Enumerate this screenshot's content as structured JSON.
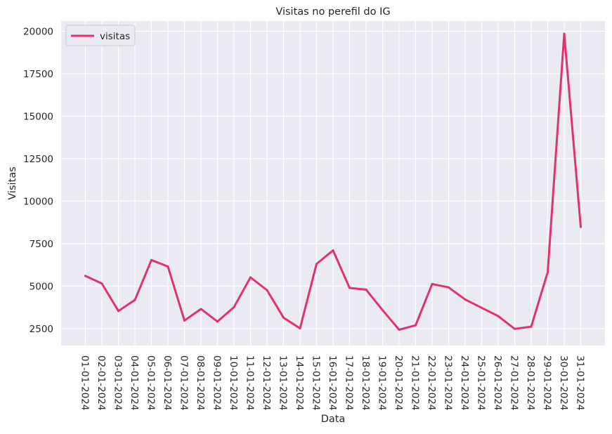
{
  "chart_data": {
    "type": "line",
    "title": "Visitas no perefil do IG",
    "xlabel": "Data",
    "ylabel": "Visitas",
    "ylim": [
      1500,
      20600
    ],
    "yticks": [
      2500,
      5000,
      7500,
      10000,
      12500,
      15000,
      17500,
      20000
    ],
    "grid": true,
    "legend_position": "top-left",
    "series": [
      {
        "name": "visitas",
        "color": "#e0336e",
        "x": [
          "01-01-2024",
          "02-01-2024",
          "03-01-2024",
          "04-01-2024",
          "05-01-2024",
          "06-01-2024",
          "07-01-2024",
          "08-01-2024",
          "09-01-2024",
          "10-01-2024",
          "11-01-2024",
          "12-01-2024",
          "13-01-2024",
          "14-01-2024",
          "15-01-2024",
          "16-01-2024",
          "17-01-2024",
          "18-01-2024",
          "19-01-2024",
          "20-01-2024",
          "21-01-2024",
          "22-01-2024",
          "23-01-2024",
          "24-01-2024",
          "25-01-2024",
          "26-01-2024",
          "27-01-2024",
          "28-01-2024",
          "29-01-2024",
          "30-01-2024",
          "31-01-2024"
        ],
        "values": [
          5600,
          5150,
          3530,
          4180,
          6530,
          6150,
          2970,
          3650,
          2910,
          3760,
          5510,
          4760,
          3140,
          2510,
          6300,
          7100,
          4890,
          4790,
          3580,
          2430,
          2690,
          5120,
          4920,
          4210,
          3720,
          3230,
          2480,
          2610,
          5820,
          19850,
          8480
        ]
      }
    ]
  }
}
